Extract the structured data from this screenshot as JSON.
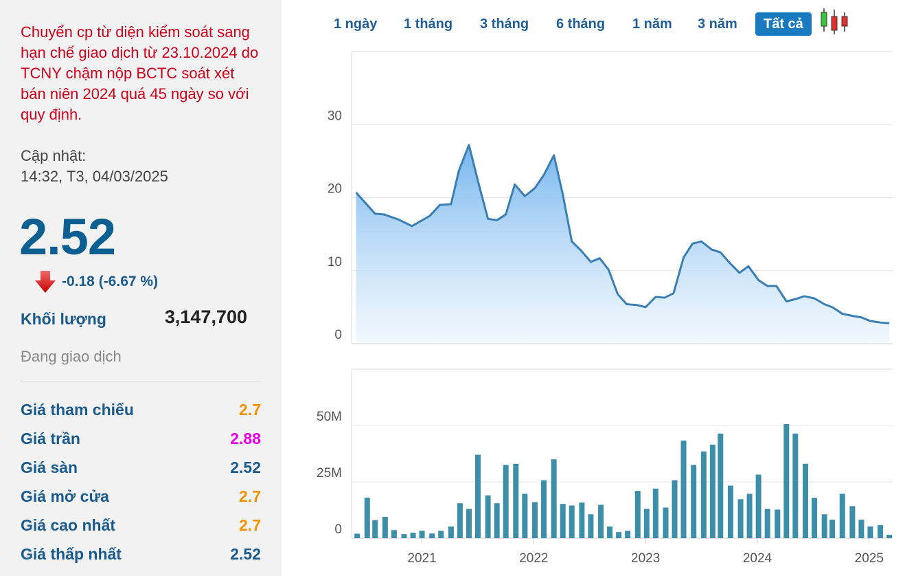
{
  "notice": "Chuyển cp từ diện kiểm soát sang hạn chế giao dịch từ 23.10.2024 do TCNY chậm nộp BCTC soát xét bán niên 2024 quá 45 ngày so với quy định.",
  "updated_label": "Cập nhật:",
  "updated_time": "14:32, T3, 04/03/2025",
  "price": "2.52",
  "change": "-0.18 (-6.67 %)",
  "volume_label": "Khối lượng",
  "volume": "3,147,700",
  "status": "Đang giao dịch",
  "stats": [
    {
      "label": "Giá tham chiếu",
      "value": "2.7",
      "color": "#f39200"
    },
    {
      "label": "Giá trần",
      "value": "2.88",
      "color": "#e800e8"
    },
    {
      "label": "Giá sàn",
      "value": "2.52",
      "color": "#1a5b8e"
    },
    {
      "label": "Giá mở cửa",
      "value": "2.7",
      "color": "#f39200"
    },
    {
      "label": "Giá cao nhất",
      "value": "2.7",
      "color": "#f39200"
    },
    {
      "label": "Giá thấp nhất",
      "value": "2.52",
      "color": "#1a5b8e"
    }
  ],
  "tabs": [
    "1 ngày",
    "1 tháng",
    "3 tháng",
    "6 tháng",
    "1 năm",
    "3 năm",
    "Tất cả"
  ],
  "active_tab": 6,
  "chart_data": [
    {
      "type": "area",
      "color": "#3a7fb3",
      "grid": true,
      "xlim": [
        2020.37,
        2025.21
      ],
      "ylim": [
        0,
        40
      ],
      "yticks": [
        0,
        10,
        20,
        30
      ],
      "x": [
        2020.41,
        2020.58,
        2020.66,
        2020.79,
        2020.91,
        2021.07,
        2021.16,
        2021.26,
        2021.33,
        2021.42,
        2021.5,
        2021.59,
        2021.67,
        2021.75,
        2021.83,
        2021.92,
        2022.01,
        2022.09,
        2022.18,
        2022.26,
        2022.34,
        2022.42,
        2022.51,
        2022.59,
        2022.67,
        2022.75,
        2022.83,
        2022.92,
        2023.0,
        2023.09,
        2023.17,
        2023.25,
        2023.34,
        2023.42,
        2023.5,
        2023.59,
        2023.67,
        2023.75,
        2023.84,
        2023.92,
        2024.01,
        2024.09,
        2024.17,
        2024.26,
        2024.34,
        2024.42,
        2024.51,
        2024.6,
        2024.67,
        2024.76,
        2024.85,
        2024.93,
        2025.01,
        2025.1,
        2025.18
      ],
      "values": [
        20.7,
        17.8,
        17.7,
        17.0,
        16.1,
        17.5,
        19.0,
        19.1,
        23.7,
        27.2,
        22.3,
        17.1,
        16.9,
        17.7,
        21.8,
        20.2,
        21.3,
        23.1,
        25.8,
        20.4,
        14.0,
        12.8,
        11.2,
        11.7,
        10.1,
        6.8,
        5.4,
        5.3,
        5.0,
        6.4,
        6.3,
        6.9,
        11.8,
        13.7,
        14.0,
        12.9,
        12.5,
        11.1,
        9.7,
        10.6,
        8.7,
        7.9,
        7.9,
        5.8,
        6.1,
        6.5,
        6.2,
        5.4,
        5.0,
        4.1,
        3.8,
        3.6,
        3.1,
        2.9,
        2.8
      ]
    },
    {
      "type": "bar",
      "color": "#3d8fa9",
      "grid": true,
      "xlim": [
        2020.37,
        2025.21
      ],
      "xticks": [
        2021,
        2022,
        2023,
        2024,
        2025
      ],
      "ylim": [
        0,
        75
      ],
      "yticks": [
        0,
        {
          "value": 25,
          "label": "25M"
        },
        {
          "value": 50,
          "label": "50M"
        }
      ],
      "x": [
        2020.42,
        2020.51,
        2020.58,
        2020.67,
        2020.75,
        2020.84,
        2020.92,
        2021.0,
        2021.09,
        2021.17,
        2021.26,
        2021.34,
        2021.42,
        2021.5,
        2021.59,
        2021.67,
        2021.75,
        2021.84,
        2021.92,
        2022.01,
        2022.09,
        2022.18,
        2022.26,
        2022.34,
        2022.43,
        2022.51,
        2022.6,
        2022.68,
        2022.76,
        2022.84,
        2022.93,
        2023.01,
        2023.09,
        2023.18,
        2023.26,
        2023.34,
        2023.43,
        2023.52,
        2023.6,
        2023.67,
        2023.76,
        2023.85,
        2023.93,
        2024.01,
        2024.09,
        2024.18,
        2024.26,
        2024.34,
        2024.43,
        2024.51,
        2024.6,
        2024.67,
        2024.76,
        2024.85,
        2024.93,
        2025.01,
        2025.1,
        2025.18
      ],
      "values": [
        2,
        18,
        8,
        9.5,
        3.6,
        1.8,
        2.4,
        3.3,
        2.1,
        3.3,
        5.2,
        15.5,
        13,
        37,
        19,
        15.5,
        32.5,
        33,
        19.7,
        16,
        25.7,
        35,
        15.2,
        14.5,
        15.8,
        10.6,
        14.8,
        5.2,
        2.7,
        3.3,
        21,
        13,
        22,
        13.6,
        25.7,
        43.3,
        32.5,
        38.5,
        41.5,
        46.4,
        23.3,
        17.3,
        19.7,
        28.2,
        13,
        12.7,
        50.6,
        46.4,
        33,
        17.9,
        10.6,
        8.2,
        19.7,
        14.2,
        8.2,
        5.2,
        5.8,
        1.5
      ]
    }
  ]
}
